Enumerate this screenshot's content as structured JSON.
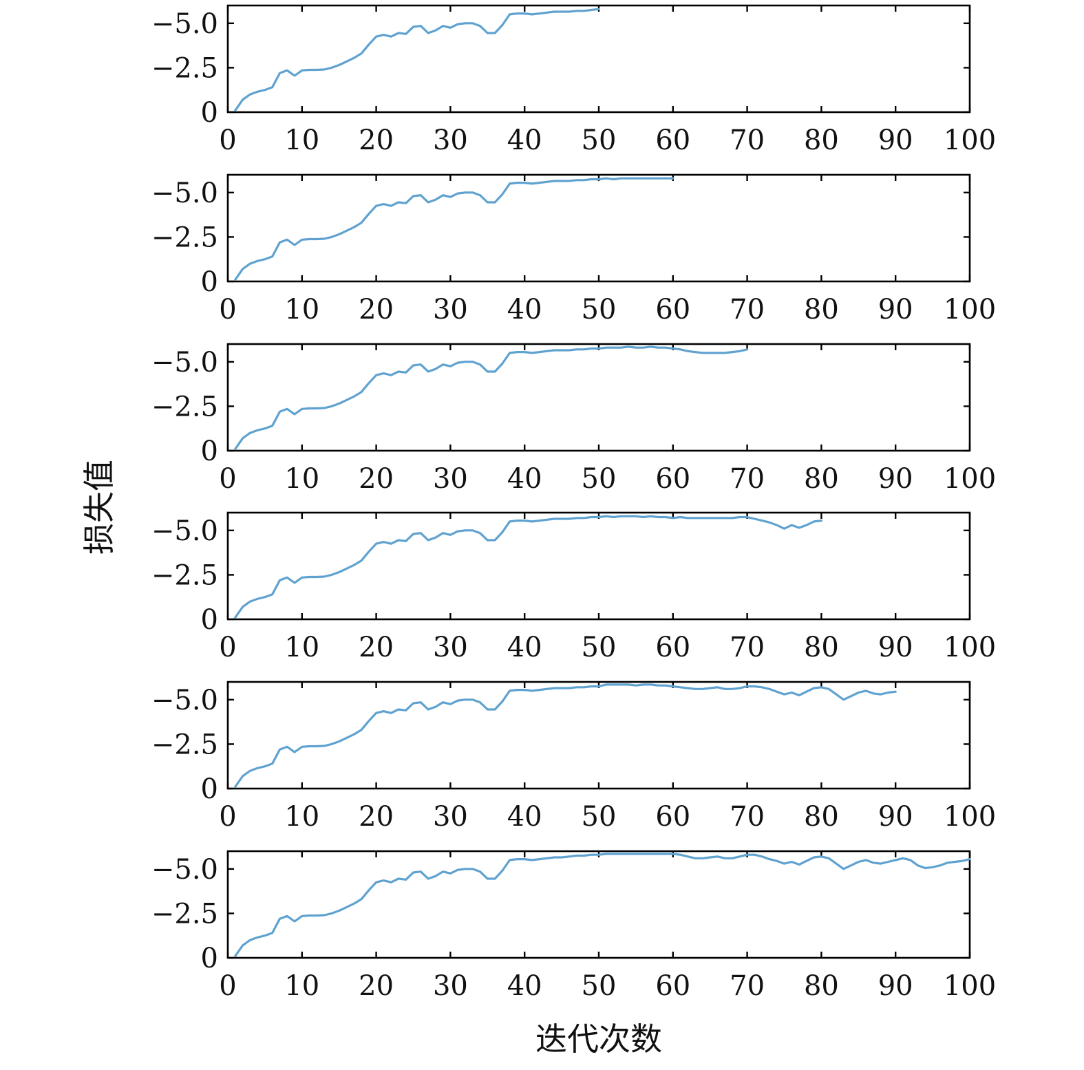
{
  "chart_data": {
    "type": "line",
    "ylabel": "损失值",
    "xlabel": "迭代次数",
    "xlim": [
      0,
      100
    ],
    "ylim": [
      0,
      -6.0
    ],
    "x_ticks": [
      0,
      10,
      20,
      30,
      40,
      50,
      60,
      70,
      80,
      90,
      100
    ],
    "x_tick_labels": [
      "0",
      "10",
      "20",
      "30",
      "40",
      "50",
      "60",
      "70",
      "80",
      "90",
      "100"
    ],
    "y_ticks": [
      0,
      -2.5,
      -5.0
    ],
    "y_tick_labels": [
      "0",
      "−2.5",
      "−5.0"
    ],
    "line_color": "#5fa2d0",
    "grid": false,
    "legend": "none",
    "x": [
      1,
      2,
      3,
      4,
      5,
      6,
      7,
      8,
      9,
      10,
      11,
      12,
      13,
      14,
      15,
      16,
      17,
      18,
      19,
      20,
      21,
      22,
      23,
      24,
      25,
      26,
      27,
      28,
      29,
      30,
      31,
      32,
      33,
      34,
      35,
      36,
      37,
      38,
      39,
      40,
      41,
      42,
      43,
      44,
      45,
      46,
      47,
      48,
      49,
      50,
      51,
      52,
      53,
      54,
      55,
      56,
      57,
      58,
      59,
      60,
      61,
      62,
      63,
      64,
      65,
      66,
      67,
      68,
      69,
      70,
      71,
      72,
      73,
      74,
      75,
      76,
      77,
      78,
      79,
      80,
      81,
      82,
      83,
      84,
      85,
      86,
      87,
      88,
      89,
      90,
      91,
      92,
      93,
      94,
      95,
      96,
      97,
      98,
      99,
      100
    ],
    "panels": [
      {
        "x_end": 50,
        "values": [
          -0.1,
          -0.7,
          -1.0,
          -1.15,
          -1.25,
          -1.4,
          -2.2,
          -2.35,
          -2.05,
          -2.35,
          -2.38,
          -2.38,
          -2.4,
          -2.5,
          -2.65,
          -2.85,
          -3.05,
          -3.3,
          -3.8,
          -4.25,
          -4.35,
          -4.25,
          -4.45,
          -4.4,
          -4.8,
          -4.85,
          -4.45,
          -4.6,
          -4.85,
          -4.75,
          -4.95,
          -5.0,
          -5.0,
          -4.85,
          -4.45,
          -4.45,
          -4.9,
          -5.5,
          -5.55,
          -5.55,
          -5.5,
          -5.55,
          -5.6,
          -5.65,
          -5.65,
          -5.65,
          -5.7,
          -5.7,
          -5.75,
          -5.8
        ]
      },
      {
        "x_end": 60,
        "values": [
          -0.1,
          -0.7,
          -1.0,
          -1.15,
          -1.25,
          -1.4,
          -2.2,
          -2.35,
          -2.05,
          -2.35,
          -2.38,
          -2.38,
          -2.4,
          -2.5,
          -2.65,
          -2.85,
          -3.05,
          -3.3,
          -3.8,
          -4.25,
          -4.35,
          -4.25,
          -4.45,
          -4.4,
          -4.8,
          -4.85,
          -4.45,
          -4.6,
          -4.85,
          -4.75,
          -4.95,
          -5.0,
          -5.0,
          -4.85,
          -4.45,
          -4.45,
          -4.9,
          -5.5,
          -5.55,
          -5.55,
          -5.5,
          -5.55,
          -5.6,
          -5.65,
          -5.65,
          -5.65,
          -5.7,
          -5.7,
          -5.75,
          -5.75,
          -5.8,
          -5.75,
          -5.8,
          -5.8,
          -5.8,
          -5.8,
          -5.8,
          -5.8,
          -5.8,
          -5.8
        ]
      },
      {
        "x_end": 70,
        "values": [
          -0.1,
          -0.7,
          -1.0,
          -1.15,
          -1.25,
          -1.4,
          -2.2,
          -2.35,
          -2.05,
          -2.35,
          -2.38,
          -2.38,
          -2.4,
          -2.5,
          -2.65,
          -2.85,
          -3.05,
          -3.3,
          -3.8,
          -4.25,
          -4.35,
          -4.25,
          -4.45,
          -4.4,
          -4.8,
          -4.85,
          -4.45,
          -4.6,
          -4.85,
          -4.75,
          -4.95,
          -5.0,
          -5.0,
          -4.85,
          -4.45,
          -4.45,
          -4.9,
          -5.5,
          -5.55,
          -5.55,
          -5.5,
          -5.55,
          -5.6,
          -5.65,
          -5.65,
          -5.65,
          -5.7,
          -5.7,
          -5.75,
          -5.75,
          -5.8,
          -5.8,
          -5.8,
          -5.85,
          -5.8,
          -5.8,
          -5.85,
          -5.8,
          -5.8,
          -5.75,
          -5.7,
          -5.6,
          -5.55,
          -5.5,
          -5.5,
          -5.5,
          -5.5,
          -5.55,
          -5.6,
          -5.7
        ]
      },
      {
        "x_end": 80,
        "values": [
          -0.1,
          -0.7,
          -1.0,
          -1.15,
          -1.25,
          -1.4,
          -2.2,
          -2.35,
          -2.05,
          -2.35,
          -2.38,
          -2.38,
          -2.4,
          -2.5,
          -2.65,
          -2.85,
          -3.05,
          -3.3,
          -3.8,
          -4.25,
          -4.35,
          -4.25,
          -4.45,
          -4.4,
          -4.8,
          -4.85,
          -4.45,
          -4.6,
          -4.85,
          -4.75,
          -4.95,
          -5.0,
          -5.0,
          -4.85,
          -4.45,
          -4.45,
          -4.9,
          -5.5,
          -5.55,
          -5.55,
          -5.5,
          -5.55,
          -5.6,
          -5.65,
          -5.65,
          -5.65,
          -5.7,
          -5.7,
          -5.75,
          -5.75,
          -5.8,
          -5.75,
          -5.8,
          -5.8,
          -5.8,
          -5.75,
          -5.8,
          -5.75,
          -5.75,
          -5.7,
          -5.75,
          -5.7,
          -5.7,
          -5.7,
          -5.7,
          -5.7,
          -5.7,
          -5.7,
          -5.75,
          -5.75,
          -5.65,
          -5.55,
          -5.45,
          -5.3,
          -5.1,
          -5.3,
          -5.15,
          -5.3,
          -5.5,
          -5.55
        ]
      },
      {
        "x_end": 90,
        "values": [
          -0.1,
          -0.7,
          -1.0,
          -1.15,
          -1.25,
          -1.4,
          -2.2,
          -2.35,
          -2.05,
          -2.35,
          -2.38,
          -2.38,
          -2.4,
          -2.5,
          -2.65,
          -2.85,
          -3.05,
          -3.3,
          -3.8,
          -4.25,
          -4.35,
          -4.25,
          -4.45,
          -4.4,
          -4.8,
          -4.85,
          -4.45,
          -4.6,
          -4.85,
          -4.75,
          -4.95,
          -5.0,
          -5.0,
          -4.85,
          -4.45,
          -4.45,
          -4.9,
          -5.5,
          -5.55,
          -5.55,
          -5.5,
          -5.55,
          -5.6,
          -5.65,
          -5.65,
          -5.65,
          -5.7,
          -5.7,
          -5.75,
          -5.75,
          -5.85,
          -5.85,
          -5.85,
          -5.85,
          -5.8,
          -5.85,
          -5.85,
          -5.8,
          -5.8,
          -5.75,
          -5.7,
          -5.65,
          -5.6,
          -5.6,
          -5.65,
          -5.7,
          -5.6,
          -5.6,
          -5.65,
          -5.75,
          -5.75,
          -5.7,
          -5.6,
          -5.45,
          -5.3,
          -5.4,
          -5.25,
          -5.45,
          -5.65,
          -5.7,
          -5.6,
          -5.3,
          -5.0,
          -5.2,
          -5.4,
          -5.5,
          -5.35,
          -5.3,
          -5.4,
          -5.45
        ]
      },
      {
        "x_end": 100,
        "values": [
          -0.1,
          -0.7,
          -1.0,
          -1.15,
          -1.25,
          -1.4,
          -2.2,
          -2.35,
          -2.05,
          -2.35,
          -2.38,
          -2.38,
          -2.4,
          -2.5,
          -2.65,
          -2.85,
          -3.05,
          -3.3,
          -3.8,
          -4.25,
          -4.35,
          -4.25,
          -4.45,
          -4.4,
          -4.8,
          -4.85,
          -4.45,
          -4.6,
          -4.85,
          -4.75,
          -4.95,
          -5.0,
          -5.0,
          -4.85,
          -4.45,
          -4.45,
          -4.9,
          -5.5,
          -5.55,
          -5.55,
          -5.5,
          -5.55,
          -5.6,
          -5.65,
          -5.65,
          -5.7,
          -5.75,
          -5.75,
          -5.8,
          -5.8,
          -5.85,
          -5.85,
          -5.85,
          -5.85,
          -5.85,
          -5.85,
          -5.85,
          -5.85,
          -5.85,
          -5.85,
          -5.8,
          -5.7,
          -5.6,
          -5.6,
          -5.65,
          -5.7,
          -5.6,
          -5.6,
          -5.7,
          -5.8,
          -5.8,
          -5.7,
          -5.55,
          -5.45,
          -5.3,
          -5.4,
          -5.25,
          -5.45,
          -5.65,
          -5.7,
          -5.6,
          -5.3,
          -5.0,
          -5.2,
          -5.4,
          -5.5,
          -5.35,
          -5.3,
          -5.4,
          -5.5,
          -5.6,
          -5.5,
          -5.2,
          -5.05,
          -5.1,
          -5.2,
          -5.35,
          -5.4,
          -5.45,
          -5.55
        ]
      }
    ]
  }
}
